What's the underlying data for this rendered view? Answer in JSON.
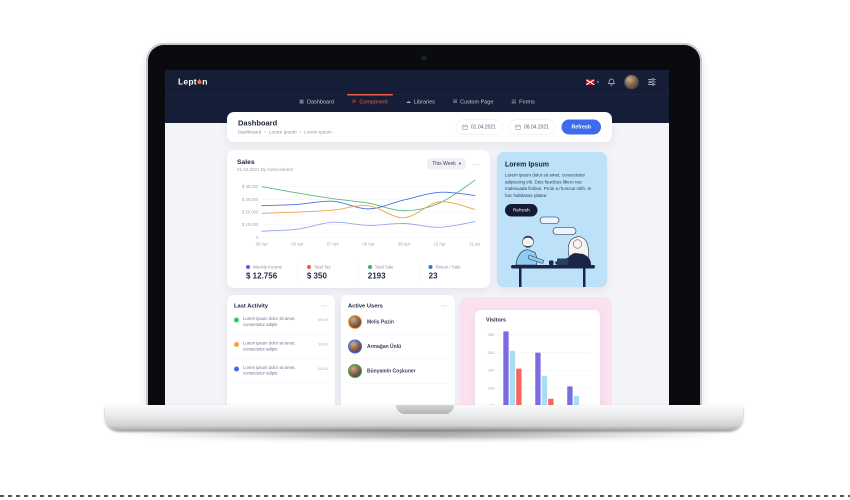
{
  "ui": {
    "overflow_icon": "⋯",
    "caret_icon": "▾",
    "breadcrumb_separator": "›"
  },
  "navbar": {
    "logo_pre": "Lept",
    "logo_post": "n",
    "right_icons": [
      "language-flag-icon",
      "notification-bell-icon",
      "user-avatar",
      "settings-sliders-icon"
    ],
    "menu": [
      {
        "label": "Dashboard",
        "icon": "▦",
        "active": false
      },
      {
        "label": "Component",
        "icon": "⚙",
        "active": true
      },
      {
        "label": "Libraries",
        "icon": "☁",
        "active": false
      },
      {
        "label": "Custom Page",
        "icon": "⊞",
        "active": false
      },
      {
        "label": "Forms",
        "icon": "▤",
        "active": false
      }
    ]
  },
  "header": {
    "title": "Dashboard",
    "breadcrumb": [
      "Dashboard",
      "Lorem Ipsum",
      "Lorem Ipsum"
    ],
    "date_from": "01.04.2021",
    "date_to": "08.04.2021",
    "refresh_label": "Refresh"
  },
  "sales": {
    "title": "Sales",
    "subtitle": "01.04.2021 By Administrator",
    "period_label": "This Week",
    "stats": [
      {
        "label": "Weekly Income",
        "value": "$ 12.756",
        "color": "#6f52ed"
      },
      {
        "label": "Total Tax",
        "value": "$ 350",
        "color": "#f05a46"
      },
      {
        "label": "Total Sale",
        "value": "2193",
        "color": "#35b56f"
      },
      {
        "label": "Return / Sale",
        "value": "23",
        "color": "#3d6bf0"
      }
    ]
  },
  "lorem_card": {
    "title": "Lorem Ipsum",
    "body": "Lorem ipsum dolor sit amet, consectetur adipiscing elit. Duis faucibus libero nec malesuada finibus. Proin a rhoncus nibh. In hac habitasse platea",
    "button_label": "Refresh"
  },
  "last_activity": {
    "title": "Last Activity",
    "items": [
      {
        "text": "Lorem ipsum dolor sit amet, consectetur adipis",
        "time": "09:42",
        "color": "#2ecc71"
      },
      {
        "text": "Lorem ipsum dolor sit amet, consectetur adipis",
        "time": "10:00",
        "color": "#f5a33b"
      },
      {
        "text": "Lorem ipsum dolor sit amet, consectetur adipis",
        "time": "08:42",
        "color": "#3d6bf0"
      }
    ]
  },
  "active_users": {
    "title": "Active Users",
    "users": [
      {
        "name": "Melis Pazin",
        "ring": "#f59e3f"
      },
      {
        "name": "Armağan Ünlü",
        "ring": "#3e6bf0"
      },
      {
        "name": "Bünyamin Coşkuner",
        "ring": "#37a651"
      }
    ]
  },
  "visitors": {
    "title": "Visitors"
  },
  "chart_data": [
    {
      "type": "line",
      "title": "Sales",
      "x": [
        "05 Apr",
        "06 Apr",
        "07 Apr",
        "08 Apr",
        "09 Apr",
        "10 Apr",
        "11 Apr"
      ],
      "y_ticks": [
        "$ 40.000",
        "$ 30.000",
        "$ 20.000",
        "$ 10.000",
        "0"
      ],
      "y_tick_values": [
        40000,
        30000,
        20000,
        10000,
        0
      ],
      "ylim": [
        0,
        46000
      ],
      "grid": true,
      "legend_position": "bottom-stats",
      "series": [
        {
          "name": "Total Sale",
          "color": "#57b97c",
          "values": [
            40000,
            35000,
            30500,
            27000,
            21000,
            27000,
            45000
          ]
        },
        {
          "name": "Weekly Income",
          "color": "#4d6fe3",
          "values": [
            25000,
            26000,
            28500,
            22500,
            29500,
            35500,
            33000
          ]
        },
        {
          "name": "Total Tax",
          "color": "#f2a14a",
          "values": [
            19000,
            20000,
            21500,
            25000,
            15500,
            28000,
            22000
          ]
        },
        {
          "name": "Return / Sale",
          "color": "#9aa5ec",
          "values": [
            5000,
            6500,
            12000,
            9500,
            11000,
            8000,
            12500
          ]
        }
      ]
    },
    {
      "type": "bar",
      "title": "Visitors",
      "categories": [
        "",
        "",
        ""
      ],
      "y_ticks": [
        250,
        200,
        150,
        100,
        50
      ],
      "ylim": [
        0,
        270
      ],
      "grid": true,
      "series": [
        {
          "name": "series-purple",
          "color": "#7c6ce4",
          "values": [
            260,
            200,
            105
          ]
        },
        {
          "name": "series-cyan",
          "color": "#a9def2",
          "values": [
            205,
            135,
            78
          ]
        },
        {
          "name": "series-red",
          "color": "#f9655b",
          "values": [
            155,
            70,
            40
          ]
        }
      ]
    }
  ]
}
